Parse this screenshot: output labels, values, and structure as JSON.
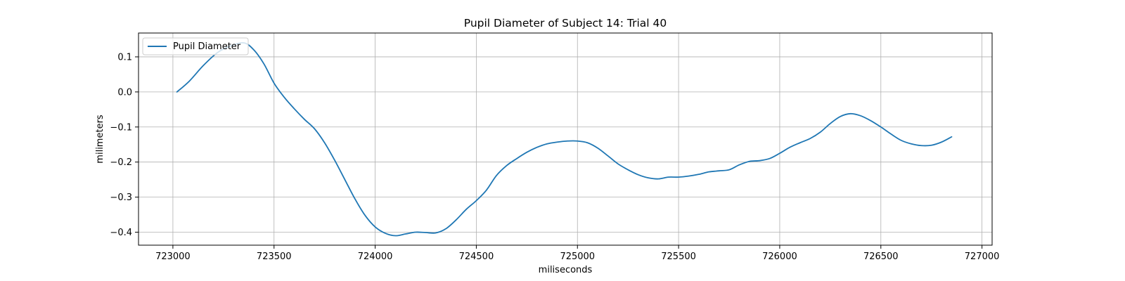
{
  "chart_data": {
    "type": "line",
    "title": "Pupil Diameter of Subject 14: Trial 40",
    "xlabel": "miliseconds",
    "ylabel": "milimeters",
    "xlim": [
      722830,
      727050
    ],
    "ylim": [
      -0.437,
      0.168
    ],
    "xticks": [
      723000,
      723500,
      724000,
      724500,
      725000,
      725500,
      726000,
      726500,
      727000
    ],
    "yticks": [
      -0.4,
      -0.3,
      -0.2,
      -0.1,
      0.0,
      0.1
    ],
    "ytick_labels": [
      "−0.4",
      "−0.3",
      "−0.2",
      "−0.1",
      "0.0",
      "0.1"
    ],
    "grid": true,
    "legend_position": "upper left",
    "series": [
      {
        "name": "Pupil Diameter",
        "color": "#1f77b4",
        "x": [
          723020,
          723080,
          723150,
          723220,
          723280,
          723350,
          723400,
          723450,
          723500,
          723550,
          723600,
          723650,
          723700,
          723750,
          723800,
          723850,
          723900,
          723950,
          724000,
          724050,
          724100,
          724150,
          724200,
          724250,
          724300,
          724350,
          724400,
          724450,
          724500,
          724550,
          724600,
          724650,
          724700,
          724750,
          724800,
          724850,
          724900,
          724950,
          725000,
          725050,
          725100,
          725150,
          725200,
          725250,
          725300,
          725350,
          725400,
          725450,
          725500,
          725550,
          725600,
          725650,
          725700,
          725750,
          725800,
          725850,
          725900,
          725950,
          726000,
          726050,
          726100,
          726150,
          726200,
          726250,
          726300,
          726350,
          726400,
          726450,
          726500,
          726550,
          726600,
          726650,
          726700,
          726750,
          726800,
          726850
        ],
        "y": [
          0.0,
          0.03,
          0.075,
          0.112,
          0.13,
          0.14,
          0.12,
          0.08,
          0.025,
          -0.015,
          -0.048,
          -0.078,
          -0.105,
          -0.145,
          -0.195,
          -0.25,
          -0.305,
          -0.352,
          -0.385,
          -0.403,
          -0.41,
          -0.405,
          -0.4,
          -0.401,
          -0.402,
          -0.39,
          -0.365,
          -0.335,
          -0.31,
          -0.28,
          -0.238,
          -0.21,
          -0.19,
          -0.172,
          -0.158,
          -0.148,
          -0.143,
          -0.14,
          -0.14,
          -0.145,
          -0.16,
          -0.182,
          -0.205,
          -0.222,
          -0.236,
          -0.245,
          -0.248,
          -0.243,
          -0.243,
          -0.24,
          -0.235,
          -0.228,
          -0.225,
          -0.222,
          -0.208,
          -0.198,
          -0.196,
          -0.19,
          -0.175,
          -0.158,
          -0.145,
          -0.133,
          -0.115,
          -0.09,
          -0.07,
          -0.062,
          -0.068,
          -0.082,
          -0.1,
          -0.12,
          -0.138,
          -0.148,
          -0.153,
          -0.152,
          -0.143,
          -0.128
        ]
      }
    ]
  }
}
